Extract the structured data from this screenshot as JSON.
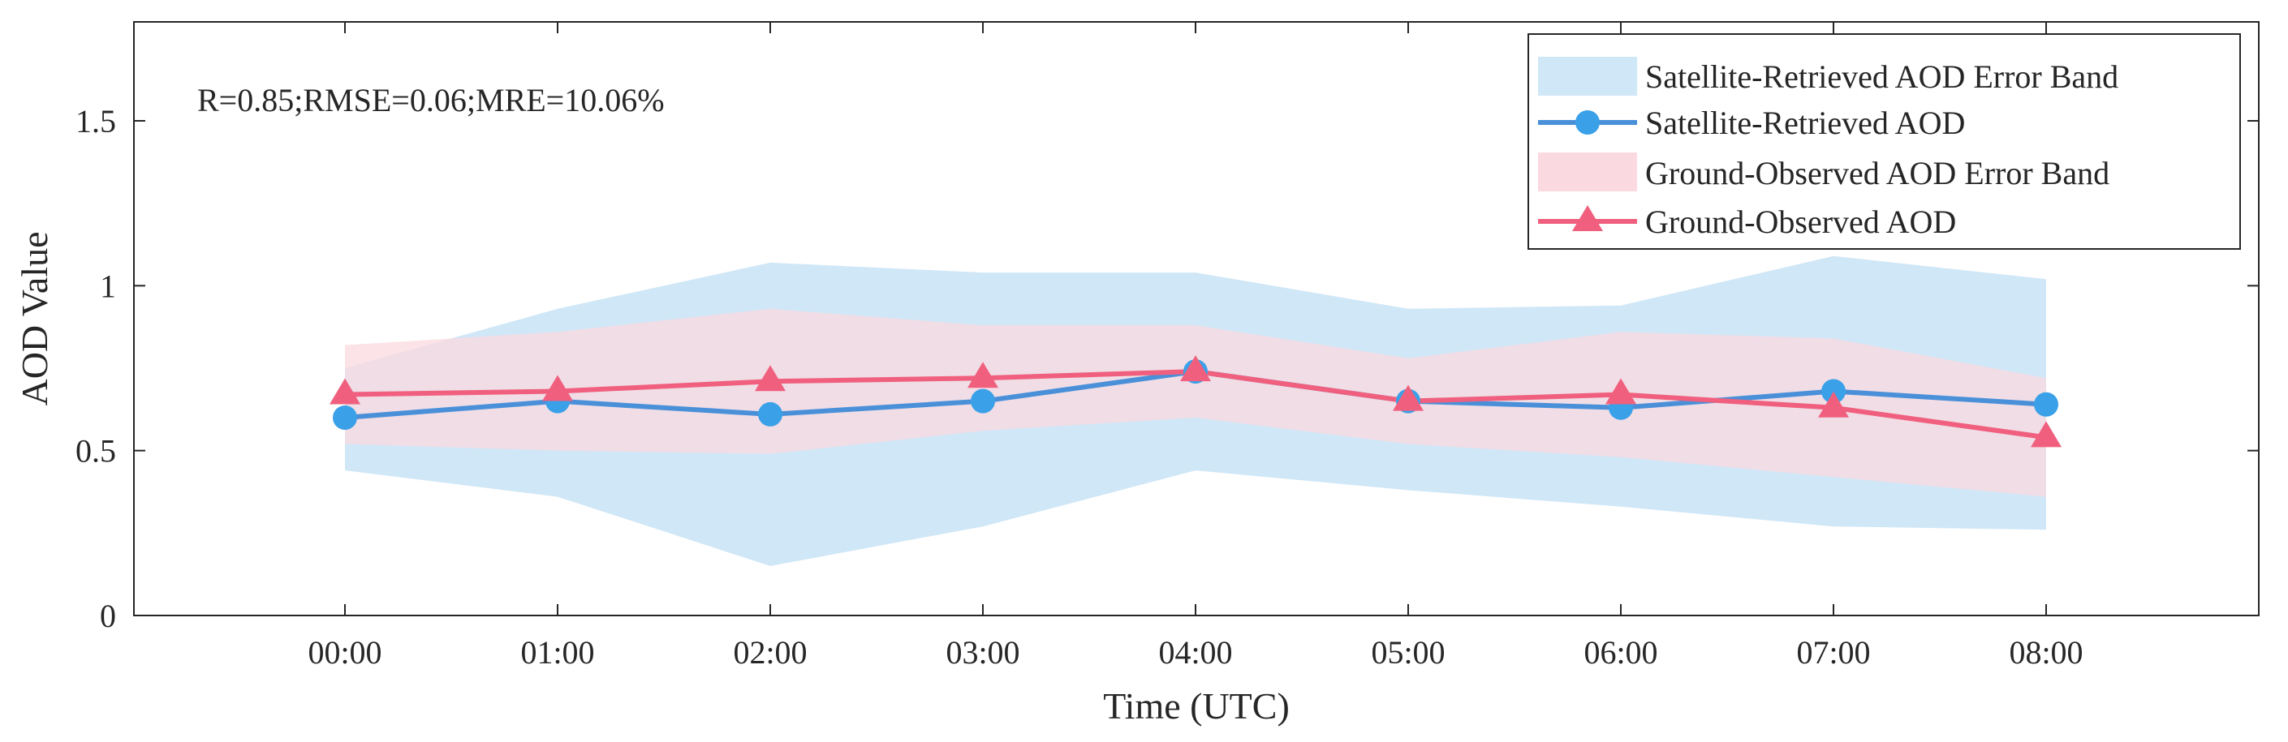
{
  "chart_data": {
    "type": "line",
    "title": "",
    "xlabel": "Time (UTC)",
    "ylabel": "AOD Value",
    "categories": [
      "00:00",
      "01:00",
      "02:00",
      "03:00",
      "04:00",
      "05:00",
      "06:00",
      "07:00",
      "08:00"
    ],
    "ylim": [
      0,
      1.8
    ],
    "yticks": [
      0,
      0.5,
      1,
      1.5
    ],
    "ytick_labels": [
      "0",
      "0.5",
      "1",
      "1.5"
    ],
    "annotation": "R=0.85;RMSE=0.06;MRE=10.06%",
    "legend_position": "top-right",
    "series": [
      {
        "name": "Satellite-Retrieved AOD",
        "kind": "line",
        "marker": "circle",
        "color": "#4A90D9",
        "marker_color": "#3AA0E8",
        "values": [
          0.6,
          0.65,
          0.61,
          0.65,
          0.74,
          0.65,
          0.63,
          0.68,
          0.64
        ]
      },
      {
        "name": "Ground-Observed AOD",
        "kind": "line",
        "marker": "triangle",
        "color": "#F0607E",
        "marker_color": "#F0607E",
        "values": [
          0.67,
          0.68,
          0.71,
          0.72,
          0.74,
          0.65,
          0.67,
          0.63,
          0.54
        ]
      }
    ],
    "bands": [
      {
        "name": "Satellite-Retrieved AOD Error Band",
        "color": "#D0E7F7",
        "upper": [
          0.75,
          0.93,
          1.07,
          1.04,
          1.04,
          0.93,
          0.94,
          1.09,
          1.02
        ],
        "lower": [
          0.44,
          0.36,
          0.15,
          0.27,
          0.44,
          0.38,
          0.33,
          0.27,
          0.26
        ]
      },
      {
        "name": "Ground-Observed AOD Error Band",
        "color": "#FBD9E0",
        "upper": [
          0.82,
          0.86,
          0.93,
          0.88,
          0.88,
          0.78,
          0.86,
          0.84,
          0.72
        ],
        "lower": [
          0.52,
          0.5,
          0.49,
          0.56,
          0.6,
          0.52,
          0.48,
          0.42,
          0.36
        ]
      }
    ],
    "legend": [
      "Satellite-Retrieved AOD Error Band",
      "Satellite-Retrieved AOD",
      "Ground-Observed AOD Error Band",
      "Ground-Observed AOD"
    ]
  }
}
